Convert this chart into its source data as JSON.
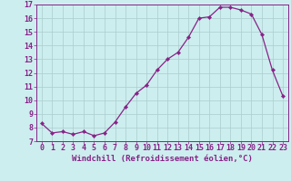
{
  "x": [
    0,
    1,
    2,
    3,
    4,
    5,
    6,
    7,
    8,
    9,
    10,
    11,
    12,
    13,
    14,
    15,
    16,
    17,
    18,
    19,
    20,
    21,
    22,
    23
  ],
  "y": [
    8.3,
    7.6,
    7.7,
    7.5,
    7.7,
    7.4,
    7.6,
    8.4,
    9.5,
    10.5,
    11.1,
    12.2,
    13.0,
    13.5,
    14.6,
    16.0,
    16.1,
    16.8,
    16.8,
    16.6,
    16.3,
    14.8,
    12.2,
    10.3
  ],
  "line_color": "#882288",
  "marker": "D",
  "marker_size": 2.2,
  "bg_color": "#cceeee",
  "grid_color": "#aacccc",
  "xlabel": "Windchill (Refroidissement éolien,°C)",
  "xlabel_fontsize": 6.5,
  "tick_fontsize": 6.0,
  "ylim": [
    7,
    17
  ],
  "yticks": [
    7,
    8,
    9,
    10,
    11,
    12,
    13,
    14,
    15,
    16,
    17
  ],
  "xticks": [
    0,
    1,
    2,
    3,
    4,
    5,
    6,
    7,
    8,
    9,
    10,
    11,
    12,
    13,
    14,
    15,
    16,
    17,
    18,
    19,
    20,
    21,
    22,
    23
  ]
}
